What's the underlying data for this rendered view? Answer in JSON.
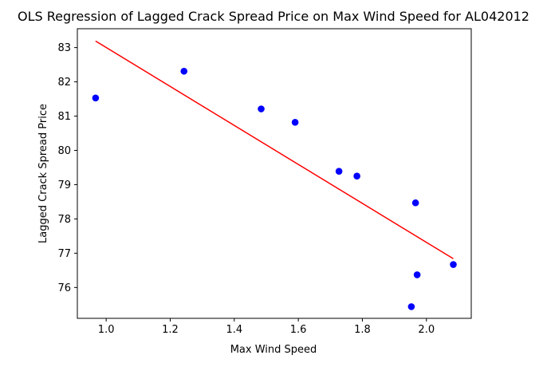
{
  "chart_data": {
    "type": "scatter",
    "title": "OLS Regression of Lagged Crack Spread Price on Max Wind Speed for AL042012",
    "xlabel": "Max Wind Speed",
    "ylabel": "Lagged Crack Spread Price",
    "xlim": [
      0.91,
      2.14
    ],
    "ylim": [
      75.1,
      83.55
    ],
    "xticks": [
      1.0,
      1.2,
      1.4,
      1.6,
      1.8,
      2.0
    ],
    "xtick_labels": [
      "1.0",
      "1.2",
      "1.4",
      "1.6",
      "1.8",
      "2.0"
    ],
    "yticks": [
      76,
      77,
      78,
      79,
      80,
      81,
      82,
      83
    ],
    "ytick_labels": [
      "76",
      "77",
      "78",
      "79",
      "80",
      "81",
      "82",
      "83"
    ],
    "grid": false,
    "series": [
      {
        "kind": "scatter",
        "color": "#0000ff",
        "points": [
          {
            "x": 0.967,
            "y": 81.53
          },
          {
            "x": 1.243,
            "y": 82.31
          },
          {
            "x": 1.484,
            "y": 81.21
          },
          {
            "x": 1.59,
            "y": 80.82
          },
          {
            "x": 1.727,
            "y": 79.39
          },
          {
            "x": 1.783,
            "y": 79.25
          },
          {
            "x": 1.966,
            "y": 78.47
          },
          {
            "x": 1.971,
            "y": 76.37
          },
          {
            "x": 1.953,
            "y": 75.44
          },
          {
            "x": 2.084,
            "y": 76.67
          }
        ]
      },
      {
        "kind": "line",
        "color": "#ff0000",
        "points": [
          {
            "x": 0.967,
            "y": 83.19
          },
          {
            "x": 2.084,
            "y": 76.84
          }
        ]
      }
    ]
  }
}
